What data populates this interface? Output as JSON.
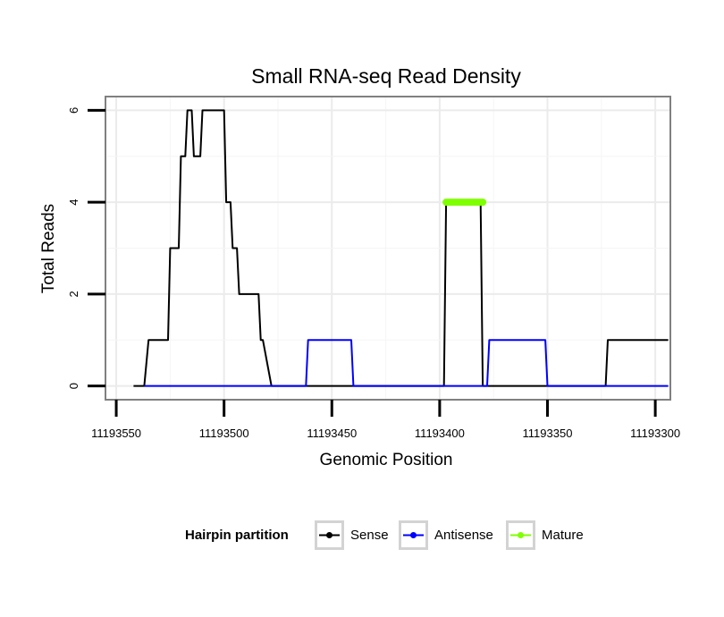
{
  "chart_data": {
    "type": "line",
    "title": "Small RNA-seq Read Density",
    "xlabel": "Genomic Position",
    "ylabel": "Total Reads",
    "x_reversed": true,
    "xlim": [
      11193555,
      11193293
    ],
    "ylim": [
      -0.3,
      6.3
    ],
    "x_ticks": [
      11193550,
      11193500,
      11193450,
      11193400,
      11193350,
      11193300
    ],
    "x_tick_labels": [
      "11193550",
      "11193500",
      "11193450",
      "11193400",
      "11193350",
      "11193300"
    ],
    "y_ticks": [
      0,
      2,
      4,
      6
    ],
    "y_tick_labels": [
      "0",
      "2",
      "4",
      "6"
    ],
    "grid": true,
    "legend": {
      "title": "Hairpin partition",
      "position": "bottom",
      "entries": [
        "Sense",
        "Antisense",
        "Mature"
      ]
    },
    "series": [
      {
        "name": "Sense",
        "color": "#000000",
        "style": "line",
        "x": [
          11193542,
          11193537,
          11193535,
          11193526,
          11193525,
          11193521,
          11193520,
          11193518,
          11193517,
          11193515,
          11193514,
          11193511,
          11193510,
          11193507,
          11193506,
          11193500,
          11193499,
          11193497,
          11193496,
          11193494,
          11193493,
          11193485,
          11193484,
          11193483,
          11193482,
          11193478,
          11193472,
          11193455,
          11193445,
          11193440,
          11193421,
          11193398,
          11193397,
          11193381,
          11193380,
          11193323,
          11193322,
          11193294
        ],
        "y": [
          0,
          0,
          1,
          1,
          3,
          3,
          5,
          5,
          6,
          6,
          5,
          5,
          6,
          6,
          6,
          6,
          4,
          4,
          3,
          3,
          2,
          2,
          2,
          1,
          1,
          0,
          0,
          0,
          0,
          0,
          0,
          0,
          4,
          4,
          0,
          0,
          1,
          1
        ]
      },
      {
        "name": "Antisense",
        "color": "#0000ff",
        "style": "line",
        "x": [
          11193537,
          11193488,
          11193478,
          11193462,
          11193461,
          11193441,
          11193440,
          11193421,
          11193380,
          11193378,
          11193377,
          11193351,
          11193350,
          11193294
        ],
        "y": [
          0,
          0,
          0,
          0,
          1,
          1,
          0,
          0,
          0,
          0,
          1,
          1,
          0,
          0
        ]
      },
      {
        "name": "Mature",
        "color": "#7fff00",
        "style": "points",
        "x": [
          11193397,
          11193396,
          11193395,
          11193394,
          11193393,
          11193392,
          11193391,
          11193390,
          11193389,
          11193388,
          11193387,
          11193386,
          11193385,
          11193384,
          11193383,
          11193382,
          11193381,
          11193380
        ],
        "y": [
          4,
          4,
          4,
          4,
          4,
          4,
          4,
          4,
          4,
          4,
          4,
          4,
          4,
          4,
          4,
          4,
          4,
          4
        ]
      }
    ]
  }
}
